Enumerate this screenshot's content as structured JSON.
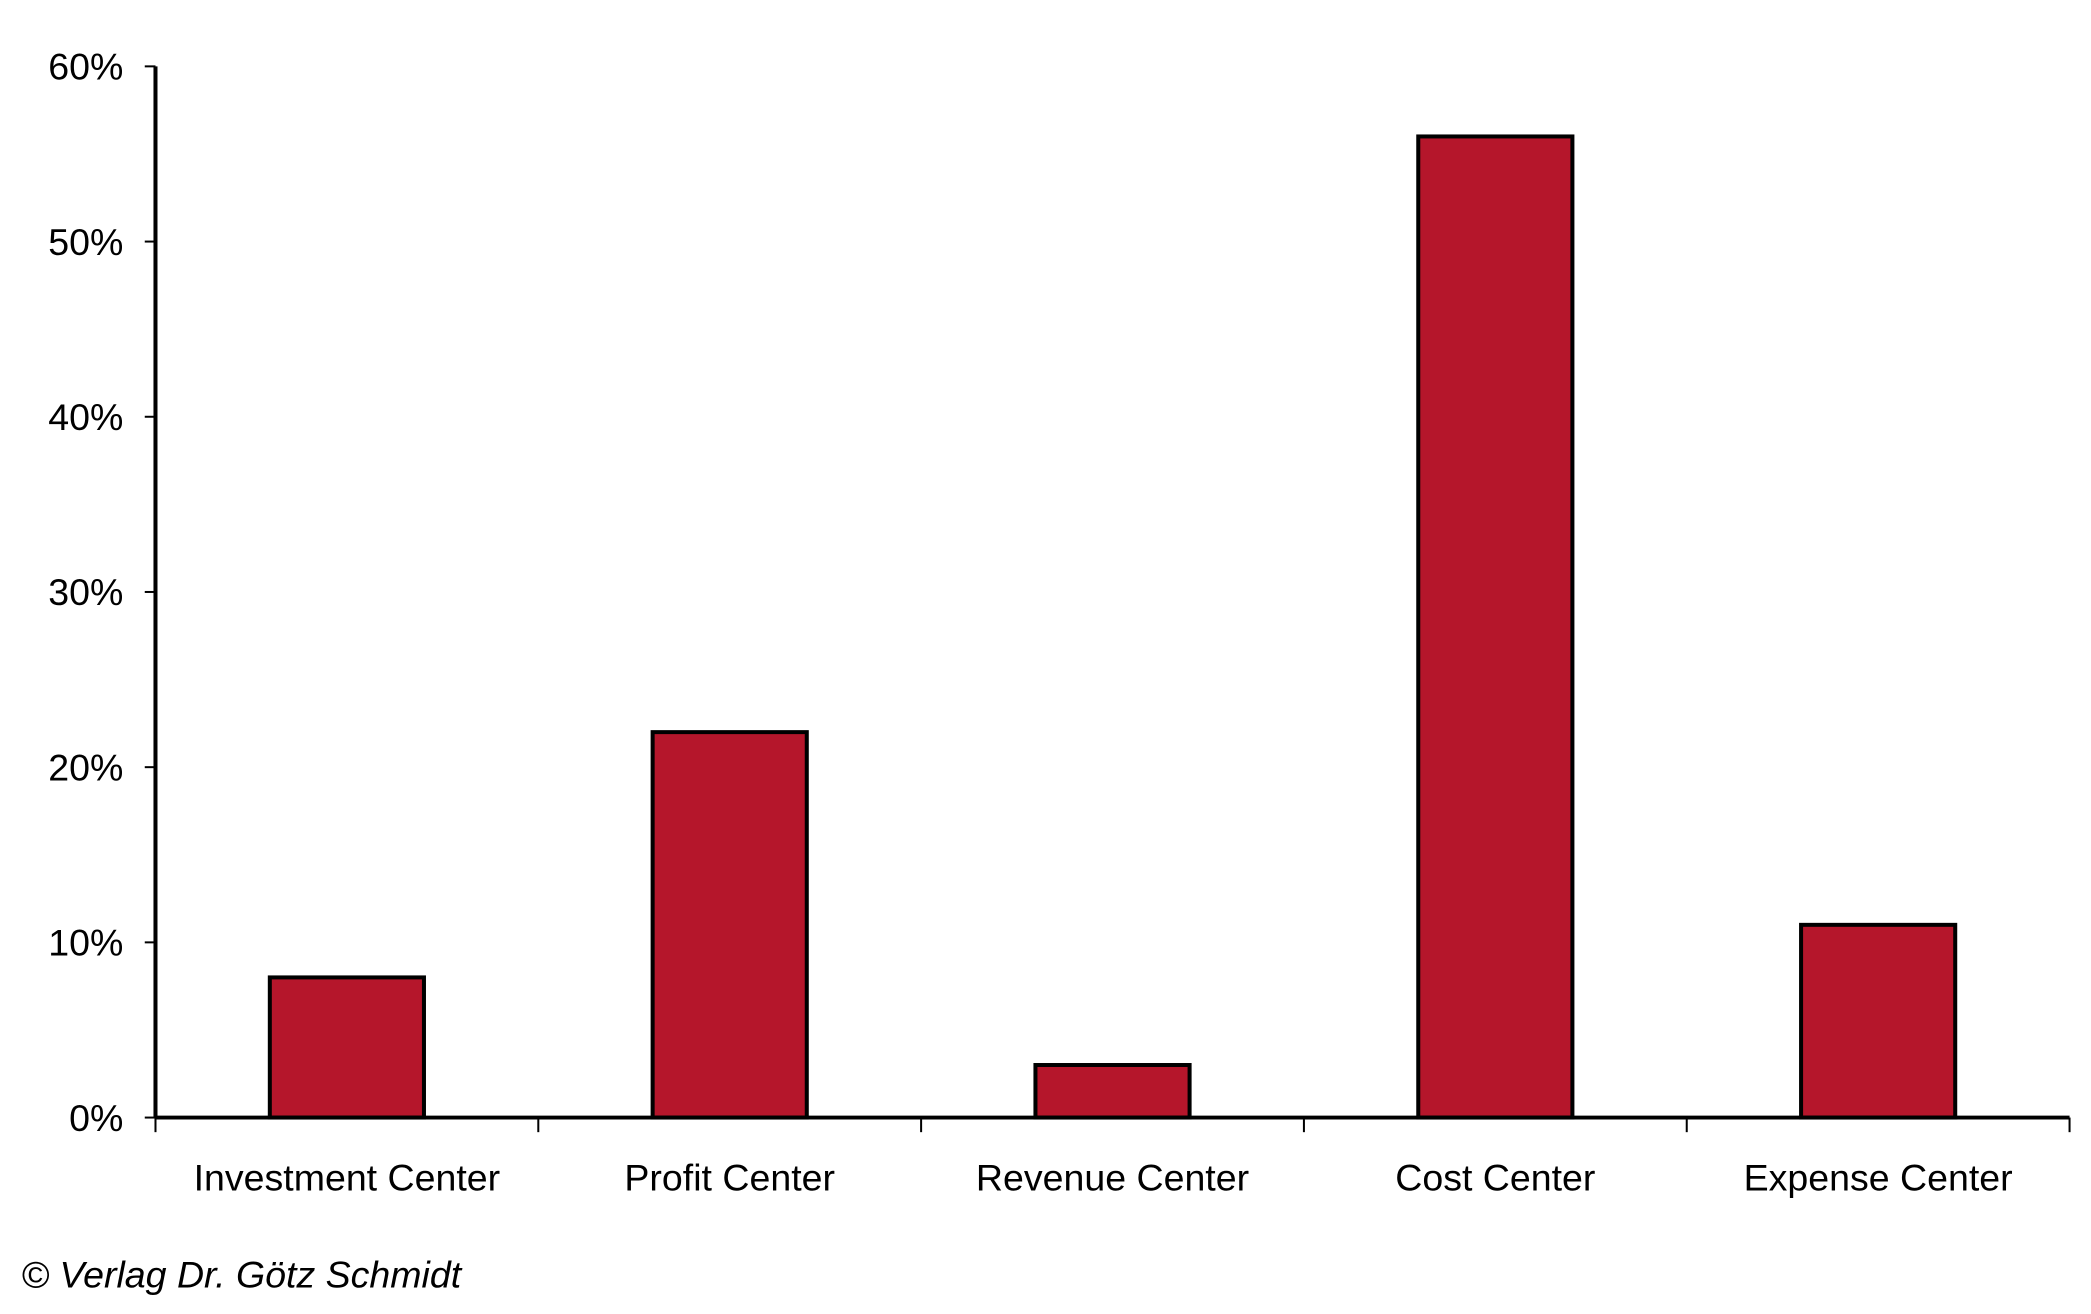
{
  "chart_data": {
    "type": "bar",
    "title": "",
    "xlabel": "",
    "ylabel": "",
    "categories": [
      "Investment Center",
      "Profit Center",
      "Revenue Center",
      "Cost Center",
      "Expense Center"
    ],
    "values": [
      8,
      22,
      3,
      56,
      11
    ],
    "unit": "%",
    "ylim": [
      0,
      60
    ],
    "yticks": [
      0,
      10,
      20,
      30,
      40,
      50,
      60
    ],
    "ytick_labels": [
      "0%",
      "10%",
      "20%",
      "30%",
      "40%",
      "50%",
      "60%"
    ],
    "grid": false,
    "legend": "none",
    "bar_color": "#B5162B"
  },
  "footer": {
    "copyright": "© Verlag Dr. Götz Schmidt"
  }
}
